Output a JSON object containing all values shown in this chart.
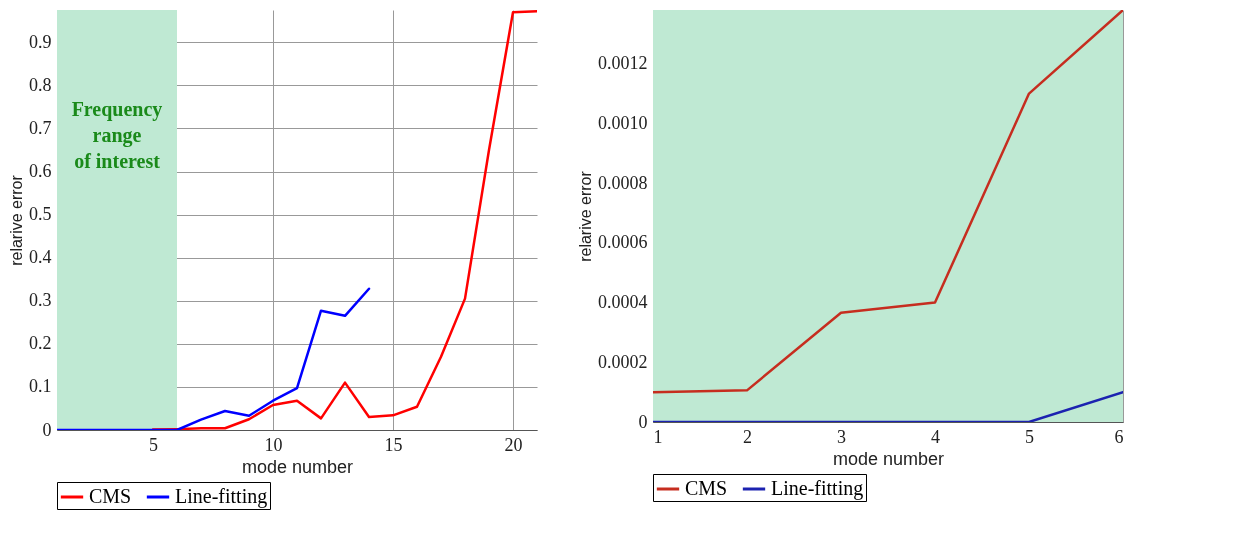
{
  "chart_data": [
    {
      "type": "line",
      "xlabel": "mode number",
      "ylabel": "relarive error",
      "x": [
        1,
        2,
        3,
        4,
        5,
        6,
        7,
        8,
        9,
        10,
        11,
        12,
        13,
        14,
        15,
        16,
        17,
        18,
        19,
        20,
        21
      ],
      "series": [
        {
          "name": "CMS",
          "color": "#ff0000",
          "values": [
            null,
            null,
            null,
            null,
            0.001,
            0.002,
            0.004,
            0.004,
            0.025,
            0.058,
            0.068,
            0.027,
            0.11,
            0.03,
            0.034,
            0.054,
            0.17,
            0.305,
            0.65,
            0.97,
            0.972
          ]
        },
        {
          "name": "Line-fitting",
          "color": "#0000ff",
          "values": [
            0,
            0,
            0,
            0,
            0,
            0,
            0.024,
            0.044,
            0.033,
            0.068,
            0.097,
            0.277,
            0.265,
            0.328,
            null,
            null,
            null,
            null,
            null,
            null,
            null
          ]
        }
      ],
      "xlim": [
        1,
        21
      ],
      "xticks": [
        5,
        10,
        15,
        20
      ],
      "ylim": [
        0,
        0.975
      ],
      "yticks": [
        0,
        0.1,
        0.2,
        0.3,
        0.4,
        0.5,
        0.6,
        0.7,
        0.8,
        0.9
      ],
      "bands": [
        {
          "axis": "x",
          "from": 1,
          "to": 6,
          "label": "Frequency\nrange\nof interest",
          "color": "#bfe9d3"
        }
      ],
      "grid": true,
      "legend": "bottom"
    },
    {
      "type": "line",
      "xlabel": "mode number",
      "ylabel": "relarive error",
      "x": [
        1,
        2,
        3,
        4,
        5,
        6
      ],
      "series": [
        {
          "name": "CMS",
          "color": "#c62d1f",
          "values": [
            0.0001,
            0.000106,
            0.000366,
            0.0004,
            0.0011,
            0.00138
          ]
        },
        {
          "name": "Line-fitting",
          "color": "#1c22b0",
          "values": [
            0,
            0,
            0,
            0,
            0,
            0.0001
          ]
        }
      ],
      "xlim": [
        1,
        6
      ],
      "xticks": [
        1,
        2,
        3,
        4,
        5,
        6
      ],
      "ylim": [
        0,
        0.00138
      ],
      "yticks": [
        0,
        0.0002,
        0.0004,
        0.0006,
        0.0008,
        {
          "value": 0.001,
          "label": "0.0010"
        },
        0.0012
      ],
      "bands": [
        {
          "axis": "x",
          "from": 1,
          "to": 6,
          "color": "#bfe9d3"
        }
      ],
      "grid": true,
      "legend": "bottom"
    }
  ]
}
